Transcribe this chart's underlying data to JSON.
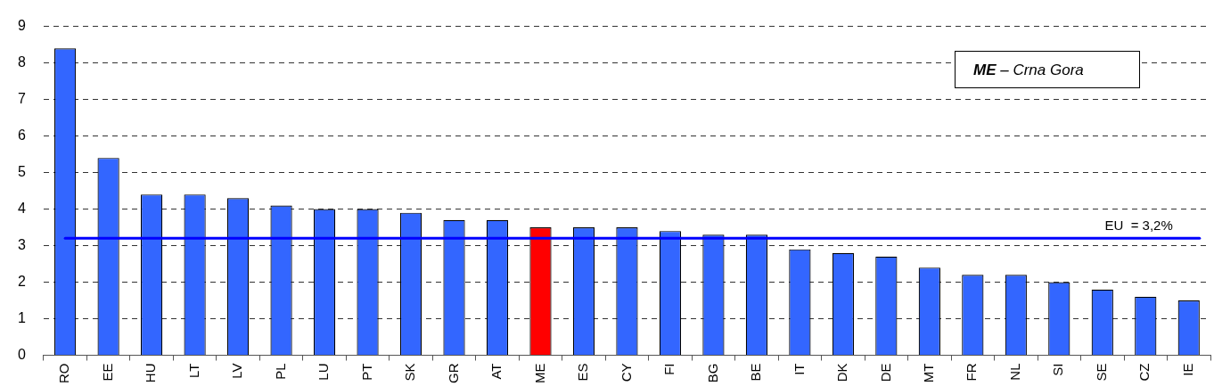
{
  "chart_data": {
    "type": "bar",
    "categories": [
      "RO",
      "EE",
      "HU",
      "LT",
      "LV",
      "PL",
      "LU",
      "PT",
      "SK",
      "GR",
      "AT",
      "ME",
      "ES",
      "CY",
      "FI",
      "BG",
      "BE",
      "IT",
      "DK",
      "DE",
      "MT",
      "FR",
      "NL",
      "SI",
      "SE",
      "CZ",
      "IE"
    ],
    "values": [
      8.4,
      5.4,
      4.4,
      4.4,
      4.3,
      4.1,
      4.0,
      4.0,
      3.9,
      3.7,
      3.7,
      3.5,
      3.5,
      3.5,
      3.4,
      3.3,
      3.3,
      2.9,
      2.8,
      2.7,
      2.4,
      2.2,
      2.2,
      2.0,
      1.8,
      1.6,
      1.5
    ],
    "colors": [
      "#3366ff",
      "#3366ff",
      "#3366ff",
      "#3366ff",
      "#3366ff",
      "#3366ff",
      "#3366ff",
      "#3366ff",
      "#3366ff",
      "#3366ff",
      "#3366ff",
      "#ff0000",
      "#3366ff",
      "#3366ff",
      "#3366ff",
      "#3366ff",
      "#3366ff",
      "#3366ff",
      "#3366ff",
      "#3366ff",
      "#3366ff",
      "#3366ff",
      "#3366ff",
      "#3366ff",
      "#3366ff",
      "#3366ff",
      "#3366ff"
    ],
    "ylim": [
      0,
      9
    ],
    "yticks": [
      0,
      1,
      2,
      3,
      4,
      5,
      6,
      7,
      8,
      9
    ],
    "grid": "y",
    "legend": false,
    "ref_lines": [
      {
        "axis": "y",
        "value": 3.2,
        "label": "EU  = 3,2%",
        "color": "#0000ff"
      }
    ],
    "annotations": [
      "ME – Crna Gora"
    ]
  }
}
